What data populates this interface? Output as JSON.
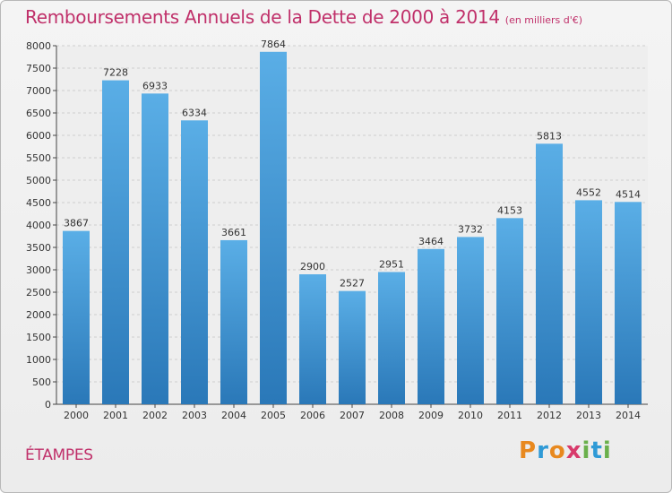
{
  "header": {
    "title": "Remboursements Annuels de la Dette de 2000 à 2014",
    "subtitle": "(en milliers d'€)"
  },
  "footer": {
    "city": "ÉTAMPES",
    "logo_text": "Proxiti"
  },
  "colors": {
    "title": "#c0306a",
    "bar_light": "#5aaee6",
    "bar_dark": "#2a78b8",
    "grid": "#cfcfcf"
  },
  "chart_data": {
    "type": "bar",
    "title": "Remboursements Annuels de la Dette de 2000 à 2014",
    "xlabel": "",
    "ylabel": "",
    "ylim": [
      0,
      8000
    ],
    "ytick_step": 500,
    "grid": true,
    "categories": [
      "2000",
      "2001",
      "2002",
      "2003",
      "2004",
      "2005",
      "2006",
      "2007",
      "2008",
      "2009",
      "2010",
      "2011",
      "2012",
      "2013",
      "2014"
    ],
    "values": [
      3867,
      7228,
      6933,
      6334,
      3661,
      7864,
      2900,
      2527,
      2951,
      3464,
      3732,
      4153,
      5813,
      4552,
      4514
    ]
  }
}
